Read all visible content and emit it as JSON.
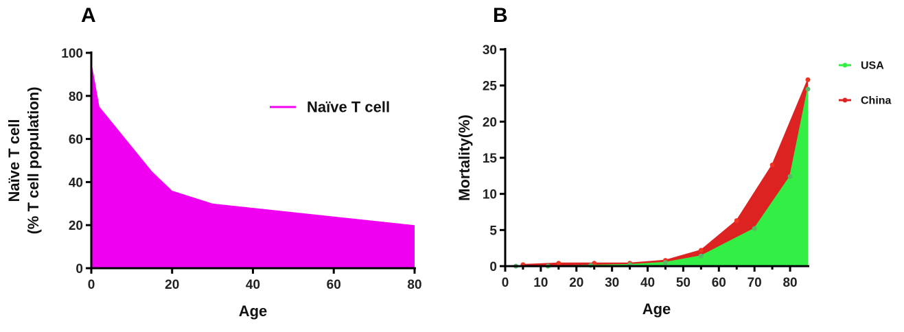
{
  "chart_data": [
    {
      "panel": "A",
      "type": "area",
      "xlabel": "Age",
      "ylabel_line1": "Naïve T cell",
      "ylabel_line2": "(% T cell population)",
      "xlim": [
        0,
        80
      ],
      "ylim": [
        0,
        100
      ],
      "xticks": [
        0,
        20,
        40,
        60,
        80
      ],
      "yticks": [
        0,
        20,
        40,
        60,
        80,
        100
      ],
      "legend_position": "top-right",
      "series": [
        {
          "name": "Naïve T cell",
          "color": "#f000f0",
          "x": [
            0,
            2,
            15,
            20,
            30,
            80
          ],
          "y": [
            96,
            75,
            45,
            36,
            30,
            20
          ]
        }
      ]
    },
    {
      "panel": "B",
      "type": "area",
      "xlabel": "Age",
      "ylabel": "Mortality(%)",
      "xlim": [
        0,
        85
      ],
      "ylim": [
        0,
        30
      ],
      "xticks": [
        0,
        10,
        20,
        30,
        40,
        50,
        60,
        70,
        80
      ],
      "yticks": [
        0,
        5,
        10,
        15,
        20,
        25,
        30
      ],
      "legend_position": "top-right",
      "series": [
        {
          "name": "USA",
          "color": "#33ee44",
          "x": [
            3,
            12,
            24,
            35,
            45,
            55,
            70,
            80,
            85
          ],
          "y": [
            0,
            0,
            0.1,
            0.2,
            0.5,
            1.4,
            5.2,
            12.4,
            24.5
          ]
        },
        {
          "name": "China",
          "color": "#dd2222",
          "x": [
            5,
            15,
            25,
            35,
            45,
            55,
            65,
            75,
            85
          ],
          "y": [
            0.2,
            0.4,
            0.4,
            0.4,
            0.8,
            2.2,
            6.3,
            14.0,
            25.8
          ]
        }
      ]
    }
  ]
}
